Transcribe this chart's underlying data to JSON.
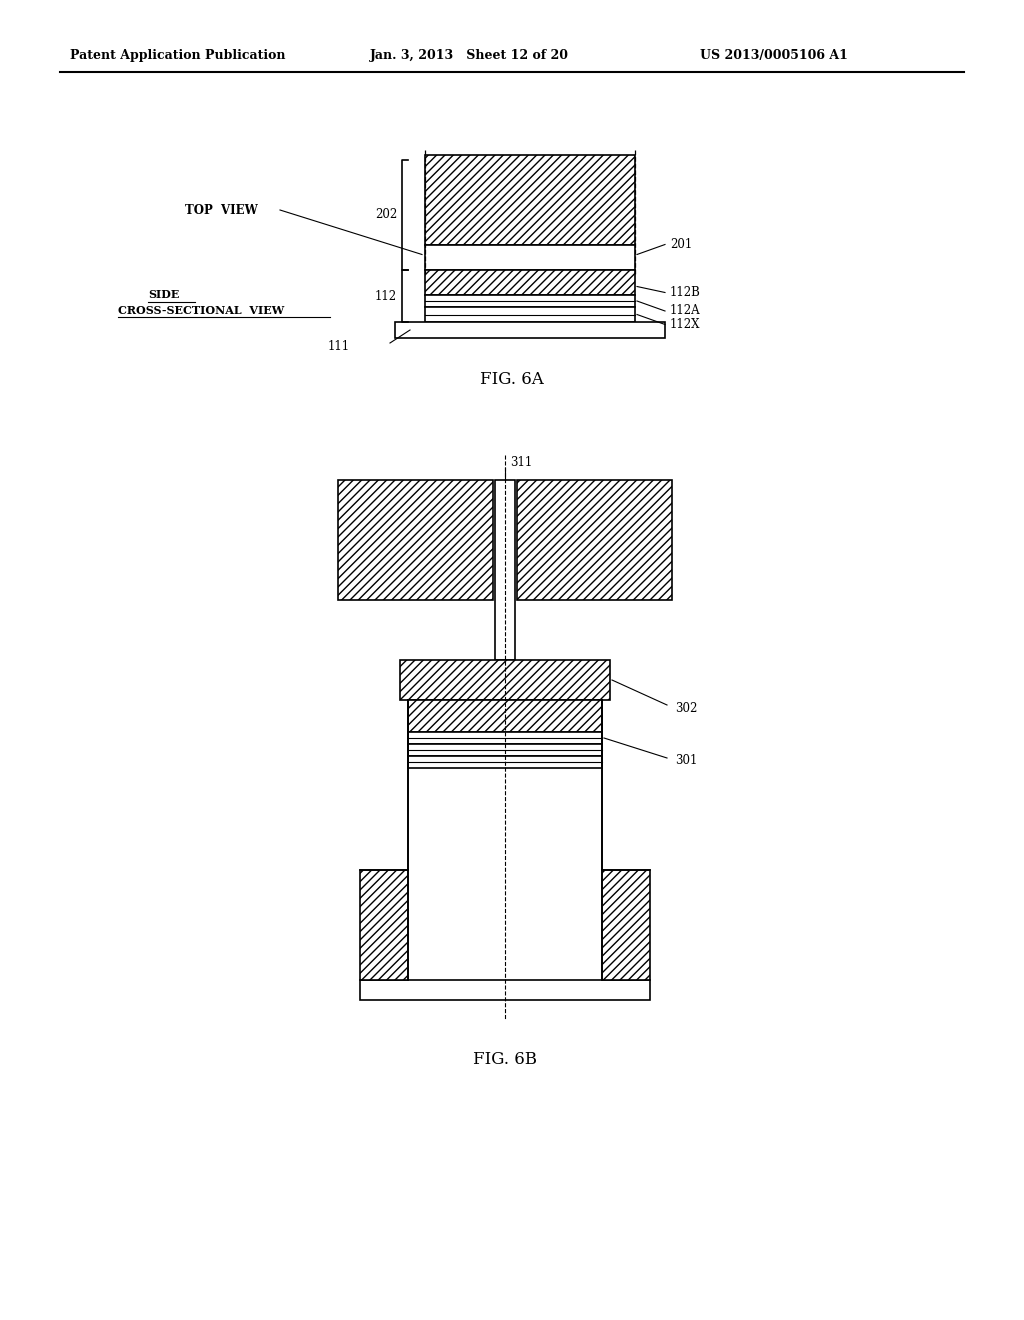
{
  "background_color": "#ffffff",
  "header_left": "Patent Application Publication",
  "header_mid": "Jan. 3, 2013   Sheet 12 of 20",
  "header_right": "US 2013/0005106 A1",
  "fig6a_caption": "FIG. 6A",
  "fig6b_caption": "FIG. 6B",
  "label_top_view": "TOP  VIEW",
  "label_side_view": "SIDE\nCROSS-SECTIONAL  VIEW",
  "labels_6a": [
    "202",
    "201",
    "112B",
    "112A",
    "112X",
    "112",
    "111"
  ],
  "labels_6b": [
    "311",
    "302",
    "301"
  ],
  "hatch_pattern": "////",
  "line_color": "#000000",
  "hatch_color": "#000000"
}
